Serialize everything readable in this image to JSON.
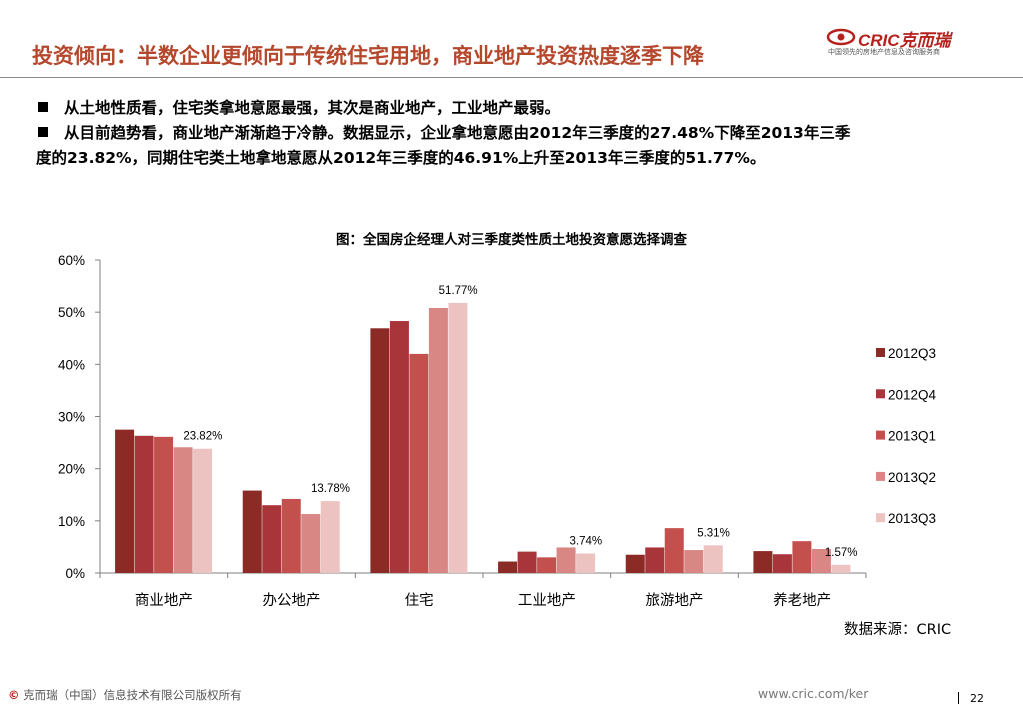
{
  "header": {
    "title": "投资倾向：半数企业更倾向于传统住宅用地，商业地产投资热度逐季下降",
    "logo_text": "CRIC克而瑞",
    "logo_subtitle": "中国领先的房地产信息及咨询服务商",
    "brand_color": "#b5472c"
  },
  "bullets": {
    "line1": "从土地性质看，住宅类拿地意愿最强，其次是商业地产，工业地产最弱。",
    "line2": "从目前趋势看，商业地产渐渐趋于冷静。数据显示，企业拿地意愿由2012年三季度的27.48%下降至2013年三季",
    "line3": "度的23.82%，同期住宅类土地拿地意愿从2012年三季度的46.91%上升至2013年三季度的51.77%。"
  },
  "chart_data": {
    "type": "bar",
    "title": "图：全国房企经理人对三季度类性质土地投资意愿选择调查",
    "categories": [
      "商业地产",
      "办公地产",
      "住宅",
      "工业地产",
      "旅游地产",
      "养老地产"
    ],
    "series": [
      {
        "name": "2012Q3",
        "color": "#8c2a26",
        "values": [
          27.48,
          15.8,
          46.91,
          2.2,
          3.5,
          4.2
        ]
      },
      {
        "name": "2012Q4",
        "color": "#a8353a",
        "values": [
          26.3,
          13.0,
          48.3,
          4.1,
          4.9,
          3.6
        ]
      },
      {
        "name": "2013Q1",
        "color": "#c4504d",
        "values": [
          26.1,
          14.2,
          42.0,
          3.0,
          8.6,
          6.1
        ]
      },
      {
        "name": "2013Q2",
        "color": "#d98785",
        "values": [
          24.1,
          11.3,
          50.8,
          4.9,
          4.4,
          4.6
        ]
      },
      {
        "name": "2013Q3",
        "color": "#edc3c2",
        "values": [
          23.82,
          13.78,
          51.77,
          3.74,
          5.31,
          1.57
        ]
      }
    ],
    "data_labels": [
      "23.82%",
      "13.78%",
      "51.77%",
      "3.74%",
      "5.31%",
      "1.57%"
    ],
    "y_ticks": [
      "0%",
      "10%",
      "20%",
      "30%",
      "40%",
      "50%",
      "60%"
    ],
    "ylim": [
      0,
      60
    ],
    "legend_position": "right",
    "grid": false
  },
  "source": "数据来源：CRIC",
  "footer": {
    "copyright_symbol": "©",
    "copyright": "克而瑞（中国）信息技术有限公司版权所有",
    "url": "www.cric.com/ker",
    "page": "22"
  }
}
